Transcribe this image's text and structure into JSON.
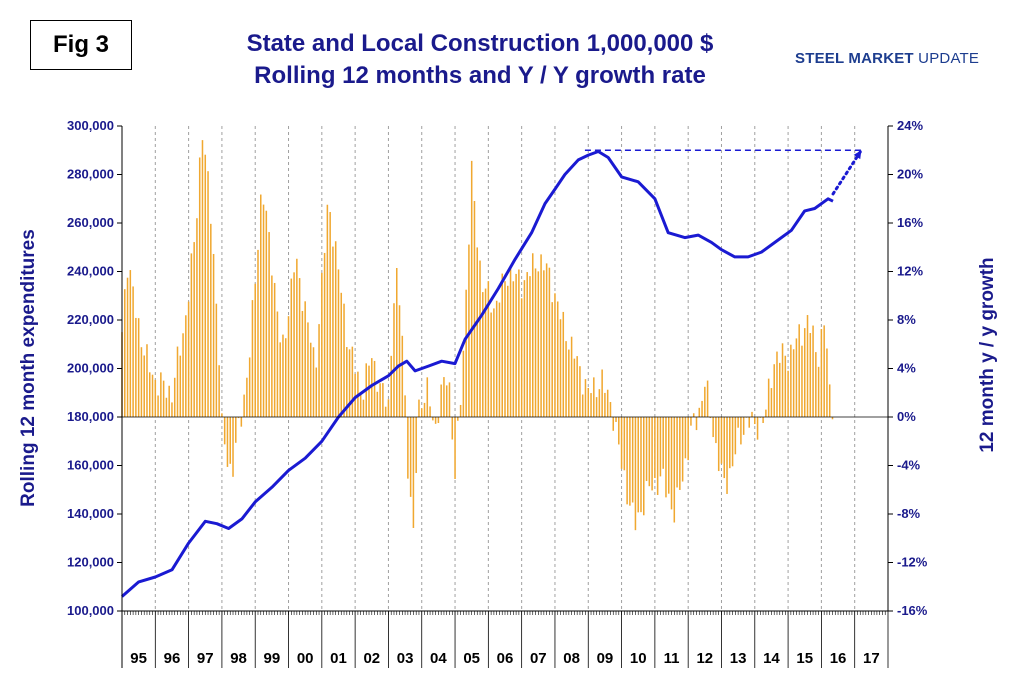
{
  "figure_label": "Fig 3",
  "title_line_1": "State and Local Construction 1,000,000 $",
  "title_line_2": "Rolling 12 months and Y / Y growth rate",
  "brand_bold": "STEEL MARKET",
  "brand_light": "UPDATE",
  "colors": {
    "line": "#1a1ad2",
    "bars": "#f0a830",
    "text": "#1a1a8c",
    "grid": "#a0a0a0"
  },
  "chart_data": {
    "type": "bar+line",
    "ylabel_left": "Rolling 12 month expenditures",
    "ylabel_right": "12 month y / y growth",
    "ylim_left": [
      100000,
      300000
    ],
    "ylim_right": [
      -16,
      24
    ],
    "yticks_left": [
      "300,000",
      "280,000",
      "260,000",
      "240,000",
      "220,000",
      "200,000",
      "180,000",
      "160,000",
      "140,000",
      "120,000",
      "100,000"
    ],
    "yticks_right": [
      "24%",
      "20%",
      "16%",
      "12%",
      "8%",
      "4%",
      "0%",
      "-4%",
      "-8%",
      "-12%",
      "-16%"
    ],
    "years": [
      "95",
      "96",
      "97",
      "98",
      "99",
      "00",
      "01",
      "02",
      "03",
      "04",
      "05",
      "06",
      "07",
      "08",
      "09",
      "10",
      "11",
      "12",
      "13",
      "14",
      "15",
      "16",
      "17"
    ],
    "growth_series_anchors": [
      [
        1995.0,
        7
      ],
      [
        1995.15,
        13
      ],
      [
        1995.4,
        9
      ],
      [
        1995.7,
        5
      ],
      [
        1996.0,
        3
      ],
      [
        1996.5,
        2
      ],
      [
        1996.9,
        8
      ],
      [
        1997.2,
        15
      ],
      [
        1997.4,
        24
      ],
      [
        1997.7,
        16
      ],
      [
        1997.9,
        6
      ],
      [
        1998.0,
        -1
      ],
      [
        1998.3,
        -5
      ],
      [
        1998.5,
        -1
      ],
      [
        1998.8,
        4
      ],
      [
        1999.2,
        19
      ],
      [
        1999.5,
        13
      ],
      [
        1999.8,
        5
      ],
      [
        2000.2,
        13
      ],
      [
        2000.5,
        9
      ],
      [
        2000.8,
        4
      ],
      [
        2001.2,
        18
      ],
      [
        2001.5,
        12
      ],
      [
        2001.8,
        6
      ],
      [
        2002.2,
        2
      ],
      [
        2002.5,
        5
      ],
      [
        2002.8,
        2
      ],
      [
        2003.0,
        1
      ],
      [
        2003.2,
        12
      ],
      [
        2003.4,
        8
      ],
      [
        2003.6,
        -5
      ],
      [
        2003.75,
        -10
      ],
      [
        2003.9,
        1
      ],
      [
        2004.2,
        2
      ],
      [
        2004.4,
        -1
      ],
      [
        2004.6,
        2
      ],
      [
        2004.8,
        4
      ],
      [
        2005.0,
        -5
      ],
      [
        2005.2,
        3
      ],
      [
        2005.4,
        14
      ],
      [
        2005.5,
        20
      ],
      [
        2005.8,
        11
      ],
      [
        2006.2,
        9
      ],
      [
        2006.6,
        12
      ],
      [
        2007.0,
        11
      ],
      [
        2007.5,
        13
      ],
      [
        2007.8,
        12
      ],
      [
        2008.2,
        8
      ],
      [
        2008.6,
        5
      ],
      [
        2009.0,
        2
      ],
      [
        2009.4,
        3
      ],
      [
        2009.7,
        1
      ],
      [
        2010.0,
        -4
      ],
      [
        2010.4,
        -9
      ],
      [
        2010.8,
        -6
      ],
      [
        2011.2,
        -5
      ],
      [
        2011.6,
        -8
      ],
      [
        2011.9,
        -4
      ],
      [
        2012.1,
        -1
      ],
      [
        2012.3,
        0
      ],
      [
        2012.5,
        3
      ],
      [
        2012.8,
        -2
      ],
      [
        2013.1,
        -6
      ],
      [
        2013.4,
        -3
      ],
      [
        2013.8,
        0
      ],
      [
        2014.0,
        -1
      ],
      [
        2014.3,
        0
      ],
      [
        2014.6,
        5
      ],
      [
        2015.0,
        5
      ],
      [
        2015.4,
        7
      ],
      [
        2015.6,
        8
      ],
      [
        2015.9,
        5
      ],
      [
        2016.1,
        8
      ],
      [
        2016.25,
        2
      ],
      [
        2016.35,
        1
      ]
    ],
    "expenditure_series": [
      [
        1995.0,
        106000
      ],
      [
        1995.5,
        112000
      ],
      [
        1996.0,
        114000
      ],
      [
        1996.5,
        117000
      ],
      [
        1997.0,
        128000
      ],
      [
        1997.5,
        137000
      ],
      [
        1997.85,
        136000
      ],
      [
        1998.2,
        134000
      ],
      [
        1998.6,
        138000
      ],
      [
        1999.0,
        145000
      ],
      [
        1999.5,
        151000
      ],
      [
        2000.0,
        158000
      ],
      [
        2000.5,
        163000
      ],
      [
        2001.0,
        170000
      ],
      [
        2001.5,
        180000
      ],
      [
        2002.0,
        188000
      ],
      [
        2002.5,
        193000
      ],
      [
        2003.0,
        197000
      ],
      [
        2003.3,
        201000
      ],
      [
        2003.55,
        203000
      ],
      [
        2003.8,
        199000
      ],
      [
        2004.2,
        201000
      ],
      [
        2004.6,
        203000
      ],
      [
        2005.0,
        202000
      ],
      [
        2005.3,
        212000
      ],
      [
        2005.8,
        222000
      ],
      [
        2006.3,
        233000
      ],
      [
        2006.8,
        245000
      ],
      [
        2007.3,
        256000
      ],
      [
        2007.7,
        268000
      ],
      [
        2008.0,
        274000
      ],
      [
        2008.3,
        280000
      ],
      [
        2008.7,
        286000
      ],
      [
        2009.0,
        288000
      ],
      [
        2009.3,
        289500
      ],
      [
        2009.6,
        287000
      ],
      [
        2010.0,
        279000
      ],
      [
        2010.5,
        277000
      ],
      [
        2011.0,
        270000
      ],
      [
        2011.4,
        256000
      ],
      [
        2011.9,
        254000
      ],
      [
        2012.3,
        255000
      ],
      [
        2012.7,
        252000
      ],
      [
        2013.0,
        249000
      ],
      [
        2013.4,
        246000
      ],
      [
        2013.8,
        246000
      ],
      [
        2014.2,
        248000
      ],
      [
        2014.7,
        253000
      ],
      [
        2015.1,
        257000
      ],
      [
        2015.5,
        265000
      ],
      [
        2015.8,
        266000
      ],
      [
        2016.2,
        270000
      ],
      [
        2016.35,
        269000
      ]
    ],
    "peak_reference": {
      "value": 290000,
      "from": 2008.9,
      "to": 2017.2
    },
    "projection": {
      "from": [
        2016.35,
        272000
      ],
      "to": [
        2017.2,
        290000
      ]
    }
  }
}
